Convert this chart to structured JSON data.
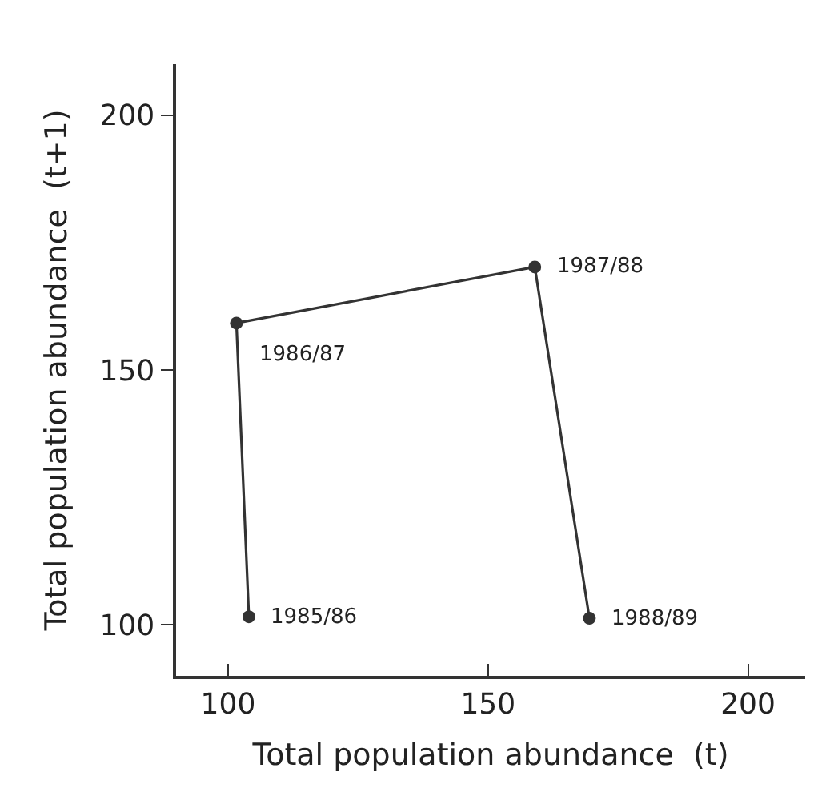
{
  "chart_data": {
    "type": "line",
    "xlabel": "Total population abundance  (t)",
    "ylabel": "Total population abundance  (t+1)",
    "series": [
      {
        "color": "#333333",
        "x": [
          104,
          101.6,
          159,
          169.5
        ],
        "values": [
          101.6,
          159.2,
          170.2,
          101.3
        ]
      }
    ],
    "annotations": [
      {
        "text": "1985/86",
        "x": 104,
        "y": 101.6
      },
      {
        "text": "1986/87",
        "x": 101.6,
        "y": 159.2
      },
      {
        "text": "1987/88",
        "x": 159,
        "y": 170.2
      },
      {
        "text": "1988/89",
        "x": 169.5,
        "y": 101.3
      }
    ],
    "xlim": [
      90,
      211
    ],
    "xticks": [
      100,
      150,
      200
    ],
    "ylim": [
      90,
      210
    ],
    "yticks": [
      100,
      150,
      200
    ],
    "marker": "circle",
    "line_style": "solid"
  }
}
